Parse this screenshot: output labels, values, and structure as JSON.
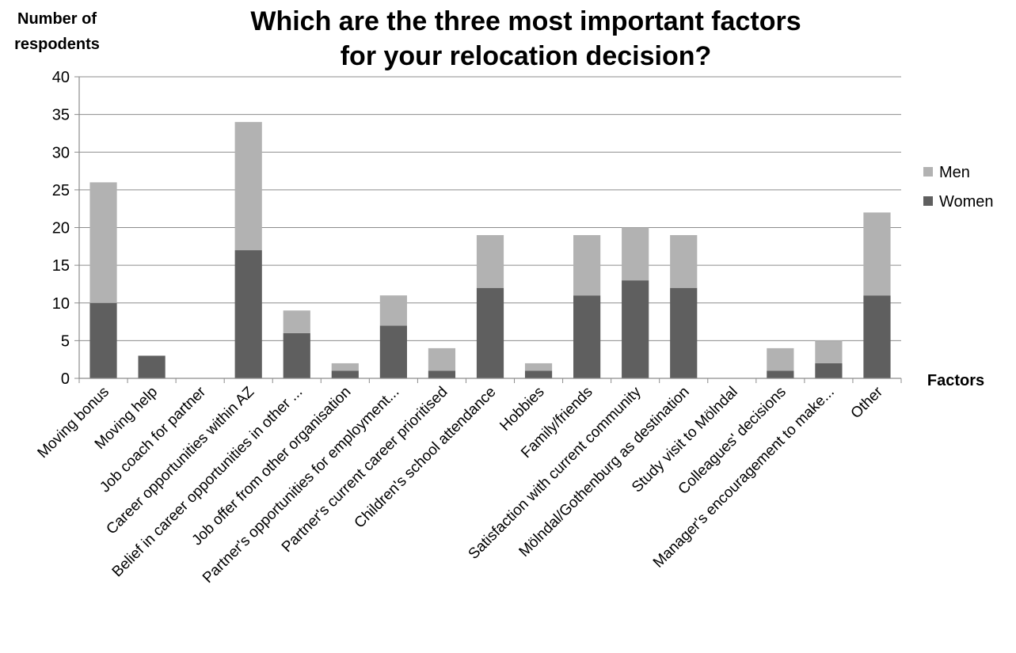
{
  "chart_data": {
    "type": "bar",
    "stacked": true,
    "title_lines": [
      "Which are the three most important factors",
      "for your relocation decision?"
    ],
    "ylabel_lines": [
      "Number of",
      "respodents"
    ],
    "xlabel": "Factors",
    "ylim": [
      0,
      40
    ],
    "yticks": [
      0,
      5,
      10,
      15,
      20,
      25,
      30,
      35,
      40
    ],
    "grid": true,
    "legend_position": "right",
    "categories": [
      "Moving bonus",
      "Moving help",
      "Job coach for partner",
      "Career opportunities within AZ",
      "Belief in career opportunities in other ...",
      "Job offer from other organisation",
      "Partner's opportunities for employment...",
      "Partner's current career prioritised",
      "Children's school attendance",
      "Hobbies",
      "Family/friends",
      "Satisfaction with current community",
      "Mölndal/Gothenburg as destination",
      "Study visit to Mölndal",
      "Colleagues' decisions",
      "Manager's encouragement to make...",
      "Other"
    ],
    "series": [
      {
        "name": "Women",
        "color": "#5f5f5f",
        "values": [
          10,
          3,
          0,
          17,
          6,
          1,
          7,
          1,
          12,
          1,
          11,
          13,
          12,
          0,
          1,
          2,
          11
        ]
      },
      {
        "name": "Men",
        "color": "#b2b2b2",
        "values": [
          16,
          0,
          0,
          17,
          3,
          1,
          4,
          3,
          7,
          1,
          8,
          7,
          7,
          0,
          3,
          3,
          11
        ]
      }
    ],
    "legend_order": [
      "Men",
      "Women"
    ]
  }
}
